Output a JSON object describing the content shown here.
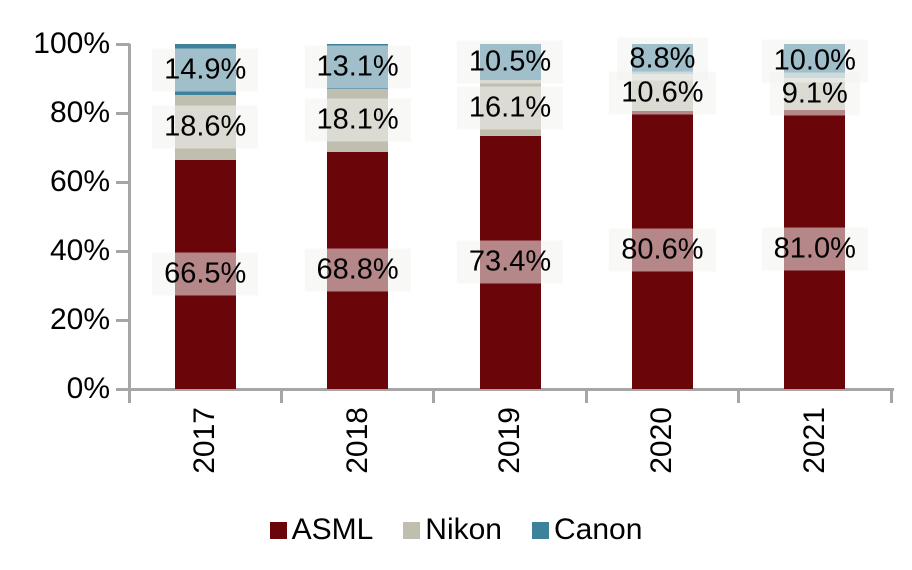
{
  "chart_data": {
    "type": "bar",
    "stacked": true,
    "title": "",
    "xlabel": "",
    "ylabel": "",
    "categories": [
      "2017",
      "2018",
      "2019",
      "2020",
      "2021"
    ],
    "series": [
      {
        "name": "ASML",
        "color": "#6A0609",
        "values": [
          66.5,
          68.8,
          73.4,
          80.6,
          81.0
        ],
        "labels": [
          "66.5%",
          "68.8%",
          "73.4%",
          "80.6%",
          "81.0%"
        ]
      },
      {
        "name": "Nikon",
        "color": "#C0BEAF",
        "values": [
          18.6,
          18.1,
          16.1,
          10.6,
          9.1
        ],
        "labels": [
          "18.6%",
          "18.1%",
          "16.1%",
          "10.6%",
          "9.1%"
        ]
      },
      {
        "name": "Canon",
        "color": "#3E819B",
        "values": [
          14.9,
          13.1,
          10.5,
          8.8,
          10.0
        ],
        "labels": [
          "14.9%",
          "13.1%",
          "10.5%",
          "8.8%",
          "10.0%"
        ]
      }
    ],
    "y_axis": {
      "min": 0,
      "max": 100,
      "ticks": [
        "0%",
        "20%",
        "40%",
        "60%",
        "80%",
        "100%"
      ]
    },
    "grid": false,
    "legend": [
      "ASML",
      "Nikon",
      "Canon"
    ],
    "legend_position": "bottom"
  },
  "style": {
    "axis_color": "#A6A6A6",
    "label_background": "rgba(242,242,240,0.55)",
    "text_color": "#000000",
    "background": "#FFFFFF"
  }
}
